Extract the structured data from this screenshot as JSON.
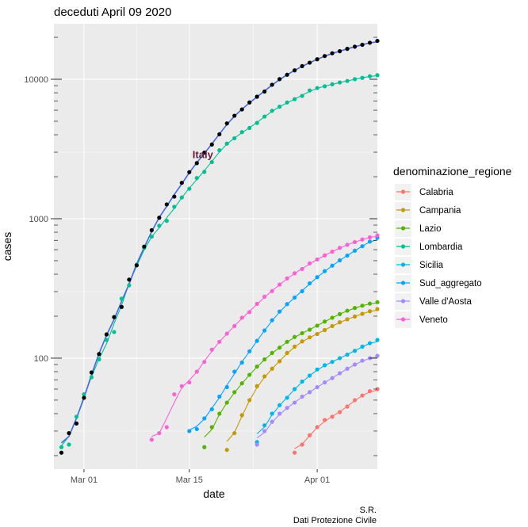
{
  "chart_data": {
    "type": "scatter",
    "title": "deceduti  April 09 2020",
    "xlabel": "date",
    "ylabel": "cases",
    "y_scale": "log10",
    "xlim": [
      "2020-02-26",
      "2020-04-09"
    ],
    "ylim": [
      16,
      25000
    ],
    "x_ticks": [
      {
        "date": "2020-03-01",
        "label": "Mar 01"
      },
      {
        "date": "2020-03-15",
        "label": "Mar 15"
      },
      {
        "date": "2020-04-01",
        "label": "Apr 01"
      }
    ],
    "y_ticks": [
      {
        "value": 100,
        "label": "100"
      },
      {
        "value": 1000,
        "label": "1000"
      },
      {
        "value": 10000,
        "label": "10000"
      }
    ],
    "annotation": {
      "text": "Italy",
      "date": "2020-03-15",
      "value": 2900
    },
    "caption": [
      "S.R.",
      "Dati Protezione Civile"
    ],
    "legend_title": "denominazione_regione",
    "legend_position": "right",
    "total_series": {
      "name": "Italy",
      "color": "#000000",
      "fit_color": "#4169E1",
      "points": [
        [
          "2020-02-27",
          21
        ],
        [
          "2020-02-28",
          29
        ],
        [
          "2020-02-29",
          34
        ],
        [
          "2020-03-01",
          52
        ],
        [
          "2020-03-02",
          79
        ],
        [
          "2020-03-03",
          107
        ],
        [
          "2020-03-04",
          148
        ],
        [
          "2020-03-05",
          197
        ],
        [
          "2020-03-06",
          233
        ],
        [
          "2020-03-07",
          366
        ],
        [
          "2020-03-08",
          463
        ],
        [
          "2020-03-09",
          631
        ],
        [
          "2020-03-10",
          827
        ],
        [
          "2020-03-11",
          1016
        ],
        [
          "2020-03-12",
          1266
        ],
        [
          "2020-03-13",
          1441
        ],
        [
          "2020-03-14",
          1809
        ],
        [
          "2020-03-15",
          2158
        ],
        [
          "2020-03-16",
          2503
        ],
        [
          "2020-03-17",
          2978
        ],
        [
          "2020-03-18",
          3405
        ],
        [
          "2020-03-19",
          4032
        ],
        [
          "2020-03-20",
          4825
        ],
        [
          "2020-03-21",
          5476
        ],
        [
          "2020-03-22",
          6077
        ],
        [
          "2020-03-23",
          6820
        ],
        [
          "2020-03-24",
          7503
        ],
        [
          "2020-03-25",
          8165
        ],
        [
          "2020-03-26",
          9134
        ],
        [
          "2020-03-27",
          10023
        ],
        [
          "2020-03-28",
          10779
        ],
        [
          "2020-03-29",
          11591
        ],
        [
          "2020-03-30",
          12428
        ],
        [
          "2020-03-31",
          13155
        ],
        [
          "2020-04-01",
          13915
        ],
        [
          "2020-04-02",
          14681
        ],
        [
          "2020-04-03",
          15362
        ],
        [
          "2020-04-04",
          15887
        ],
        [
          "2020-04-05",
          16523
        ],
        [
          "2020-04-06",
          17127
        ],
        [
          "2020-04-07",
          17669
        ],
        [
          "2020-04-08",
          18279
        ],
        [
          "2020-04-09",
          18849
        ]
      ]
    },
    "series": [
      {
        "name": "Calabria",
        "color": "#F8766D",
        "points": [
          [
            "2020-03-29",
            21
          ],
          [
            "2020-03-30",
            24
          ],
          [
            "2020-03-31",
            28
          ],
          [
            "2020-04-01",
            32
          ],
          [
            "2020-04-02",
            36
          ],
          [
            "2020-04-03",
            38
          ],
          [
            "2020-04-04",
            41
          ],
          [
            "2020-04-05",
            45
          ],
          [
            "2020-04-06",
            50
          ],
          [
            "2020-04-07",
            54
          ],
          [
            "2020-04-08",
            58
          ],
          [
            "2020-04-09",
            60
          ]
        ]
      },
      {
        "name": "Campania",
        "color": "#C49A00",
        "points": [
          [
            "2020-03-20",
            22
          ],
          [
            "2020-03-21",
            29
          ],
          [
            "2020-03-22",
            39
          ],
          [
            "2020-03-23",
            50
          ],
          [
            "2020-03-24",
            63
          ],
          [
            "2020-03-25",
            74
          ],
          [
            "2020-03-26",
            84
          ],
          [
            "2020-03-27",
            95
          ],
          [
            "2020-03-28",
            109
          ],
          [
            "2020-03-29",
            121
          ],
          [
            "2020-03-30",
            132
          ],
          [
            "2020-03-31",
            141
          ],
          [
            "2020-04-01",
            149
          ],
          [
            "2020-04-02",
            159
          ],
          [
            "2020-04-03",
            170
          ],
          [
            "2020-04-04",
            181
          ],
          [
            "2020-04-05",
            190
          ],
          [
            "2020-04-06",
            199
          ],
          [
            "2020-04-07",
            208
          ],
          [
            "2020-04-08",
            217
          ],
          [
            "2020-04-09",
            225
          ]
        ]
      },
      {
        "name": "Lazio",
        "color": "#53B400",
        "points": [
          [
            "2020-03-17",
            23
          ],
          [
            "2020-03-18",
            32
          ],
          [
            "2020-03-19",
            40
          ],
          [
            "2020-03-20",
            48
          ],
          [
            "2020-03-21",
            57
          ],
          [
            "2020-03-22",
            66
          ],
          [
            "2020-03-23",
            76
          ],
          [
            "2020-03-24",
            87
          ],
          [
            "2020-03-25",
            98
          ],
          [
            "2020-03-26",
            109
          ],
          [
            "2020-03-27",
            119
          ],
          [
            "2020-03-28",
            131
          ],
          [
            "2020-03-29",
            142
          ],
          [
            "2020-03-30",
            151
          ],
          [
            "2020-03-31",
            160
          ],
          [
            "2020-04-01",
            171
          ],
          [
            "2020-04-02",
            183
          ],
          [
            "2020-04-03",
            195
          ],
          [
            "2020-04-04",
            207
          ],
          [
            "2020-04-05",
            219
          ],
          [
            "2020-04-06",
            229
          ],
          [
            "2020-04-07",
            238
          ],
          [
            "2020-04-08",
            246
          ],
          [
            "2020-04-09",
            252
          ]
        ]
      },
      {
        "name": "Lombardia",
        "color": "#00C094",
        "points": [
          [
            "2020-02-27",
            23
          ],
          [
            "2020-02-28",
            24
          ],
          [
            "2020-02-29",
            38
          ],
          [
            "2020-03-01",
            55
          ],
          [
            "2020-03-02",
            73
          ],
          [
            "2020-03-03",
            98
          ],
          [
            "2020-03-04",
            135
          ],
          [
            "2020-03-05",
            154
          ],
          [
            "2020-03-06",
            267
          ],
          [
            "2020-03-07",
            333
          ],
          [
            "2020-03-08",
            468
          ],
          [
            "2020-03-09",
            617
          ],
          [
            "2020-03-10",
            744
          ],
          [
            "2020-03-11",
            890
          ],
          [
            "2020-03-12",
            966
          ],
          [
            "2020-03-13",
            1218
          ],
          [
            "2020-03-14",
            1420
          ],
          [
            "2020-03-15",
            1640
          ],
          [
            "2020-03-16",
            1959
          ],
          [
            "2020-03-17",
            2168
          ],
          [
            "2020-03-18",
            2549
          ],
          [
            "2020-03-19",
            3095
          ],
          [
            "2020-03-20",
            3456
          ],
          [
            "2020-03-21",
            3776
          ],
          [
            "2020-03-22",
            4178
          ],
          [
            "2020-03-23",
            4474
          ],
          [
            "2020-03-24",
            4861
          ],
          [
            "2020-03-25",
            5402
          ],
          [
            "2020-03-26",
            5944
          ],
          [
            "2020-03-27",
            6360
          ],
          [
            "2020-03-28",
            6818
          ],
          [
            "2020-03-29",
            7199
          ],
          [
            "2020-03-30",
            7593
          ],
          [
            "2020-03-31",
            8311
          ],
          [
            "2020-04-01",
            8656
          ],
          [
            "2020-04-02",
            8905
          ],
          [
            "2020-04-03",
            9202
          ],
          [
            "2020-04-04",
            9484
          ],
          [
            "2020-04-05",
            9722
          ],
          [
            "2020-04-06",
            10022
          ],
          [
            "2020-04-07",
            10238
          ],
          [
            "2020-04-08",
            10511
          ],
          [
            "2020-04-09",
            10700
          ]
        ]
      },
      {
        "name": "Sicilia",
        "color": "#00B6EB",
        "points": [
          [
            "2020-03-24",
            25
          ],
          [
            "2020-03-25",
            33
          ],
          [
            "2020-03-26",
            40
          ],
          [
            "2020-03-27",
            46
          ],
          [
            "2020-03-28",
            52
          ],
          [
            "2020-03-29",
            60
          ],
          [
            "2020-03-30",
            68
          ],
          [
            "2020-03-31",
            75
          ],
          [
            "2020-04-01",
            83
          ],
          [
            "2020-04-02",
            89
          ],
          [
            "2020-04-03",
            94
          ],
          [
            "2020-04-04",
            100
          ],
          [
            "2020-04-05",
            106
          ],
          [
            "2020-04-06",
            113
          ],
          [
            "2020-04-07",
            121
          ],
          [
            "2020-04-08",
            128
          ],
          [
            "2020-04-09",
            135
          ]
        ]
      },
      {
        "name": "Sud_aggregato",
        "color": "#06A4FF",
        "points": [
          [
            "2020-03-15",
            30
          ],
          [
            "2020-03-16",
            31
          ],
          [
            "2020-03-17",
            37
          ],
          [
            "2020-03-18",
            43
          ],
          [
            "2020-03-19",
            53
          ],
          [
            "2020-03-20",
            62
          ],
          [
            "2020-03-21",
            80
          ],
          [
            "2020-03-22",
            93
          ],
          [
            "2020-03-23",
            112
          ],
          [
            "2020-03-24",
            133
          ],
          [
            "2020-03-25",
            158
          ],
          [
            "2020-03-26",
            187
          ],
          [
            "2020-03-27",
            216
          ],
          [
            "2020-03-28",
            244
          ],
          [
            "2020-03-29",
            272
          ],
          [
            "2020-03-30",
            302
          ],
          [
            "2020-03-31",
            344
          ],
          [
            "2020-04-01",
            381
          ],
          [
            "2020-04-02",
            421
          ],
          [
            "2020-04-03",
            461
          ],
          [
            "2020-04-04",
            503
          ],
          [
            "2020-04-05",
            544
          ],
          [
            "2020-04-06",
            590
          ],
          [
            "2020-04-07",
            635
          ],
          [
            "2020-04-08",
            685
          ],
          [
            "2020-04-09",
            730
          ]
        ]
      },
      {
        "name": "Valle d'Aosta",
        "color": "#A58AFF",
        "points": [
          [
            "2020-03-24",
            24
          ],
          [
            "2020-03-25",
            30
          ],
          [
            "2020-03-26",
            35
          ],
          [
            "2020-03-27",
            40
          ],
          [
            "2020-03-28",
            44
          ],
          [
            "2020-03-29",
            48
          ],
          [
            "2020-03-30",
            53
          ],
          [
            "2020-03-31",
            57
          ],
          [
            "2020-04-01",
            62
          ],
          [
            "2020-04-02",
            67
          ],
          [
            "2020-04-03",
            72
          ],
          [
            "2020-04-04",
            78
          ],
          [
            "2020-04-05",
            84
          ],
          [
            "2020-04-06",
            90
          ],
          [
            "2020-04-07",
            96
          ],
          [
            "2020-04-08",
            100
          ],
          [
            "2020-04-09",
            104
          ]
        ]
      },
      {
        "name": "Veneto",
        "color": "#FB61D7",
        "points": [
          [
            "2020-03-10",
            26
          ],
          [
            "2020-03-11",
            29
          ],
          [
            "2020-03-12",
            32
          ],
          [
            "2020-03-13",
            55
          ],
          [
            "2020-03-14",
            63
          ],
          [
            "2020-03-15",
            67
          ],
          [
            "2020-03-16",
            80
          ],
          [
            "2020-03-17",
            94
          ],
          [
            "2020-03-18",
            115
          ],
          [
            "2020-03-19",
            131
          ],
          [
            "2020-03-20",
            150
          ],
          [
            "2020-03-21",
            170
          ],
          [
            "2020-03-22",
            195
          ],
          [
            "2020-03-23",
            214
          ],
          [
            "2020-03-24",
            245
          ],
          [
            "2020-03-25",
            276
          ],
          [
            "2020-03-26",
            303
          ],
          [
            "2020-03-27",
            337
          ],
          [
            "2020-03-28",
            373
          ],
          [
            "2020-03-29",
            406
          ],
          [
            "2020-03-30",
            436
          ],
          [
            "2020-03-31",
            478
          ],
          [
            "2020-04-01",
            510
          ],
          [
            "2020-04-02",
            546
          ],
          [
            "2020-04-03",
            580
          ],
          [
            "2020-04-04",
            618
          ],
          [
            "2020-04-05",
            650
          ],
          [
            "2020-04-06",
            680
          ],
          [
            "2020-04-07",
            710
          ],
          [
            "2020-04-08",
            735
          ],
          [
            "2020-04-09",
            760
          ]
        ]
      }
    ]
  }
}
